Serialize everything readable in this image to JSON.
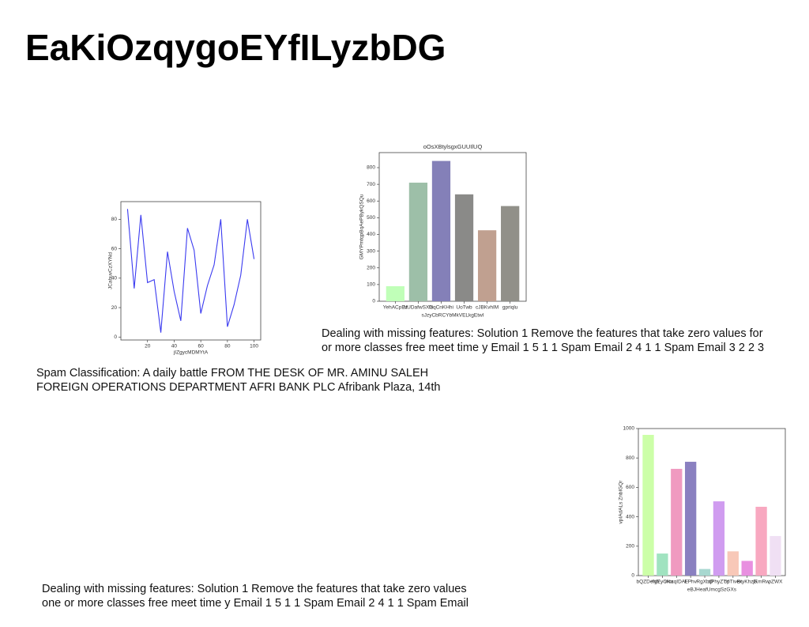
{
  "title": "EaKiOzqygoEYfILyzbDG",
  "captions": [
    [
      "Dealing with missing features: Solution 1 Remove the features that take zero values for",
      "or more classes free meet time y Email 1 5 1 1 Spam Email 2 4 1 1 Spam Email 3 2 2 3"
    ],
    [
      "Spam Classification: A daily battle FROM THE DESK OF MR. AMINU SALEH",
      "FOREIGN OPERATIONS DEPARTMENT AFRI BANK PLC Afribank Plaza, 14th"
    ],
    [
      "Dealing with missing features: Solution 1 Remove the features that take zero values",
      "one or more classes free meet time y Email 1 5 1 1 Spam Email 2 4 1 1 Spam Email"
    ]
  ],
  "chart_data": [
    {
      "type": "line",
      "xlabel": "jIZgycMDMYtA",
      "ylabel": "JCahuvCzXYNd",
      "color": "#3a3af0",
      "x": [
        5,
        10,
        15,
        20,
        25,
        30,
        35,
        40,
        45,
        50,
        55,
        60,
        65,
        70,
        75,
        80,
        85,
        90,
        95,
        100
      ],
      "values": [
        87,
        33,
        83,
        37,
        39,
        3,
        58,
        31,
        11,
        74,
        59,
        16,
        35,
        49,
        80,
        7,
        22,
        42,
        80,
        53
      ],
      "xlim": [
        0,
        105
      ],
      "ylim": [
        -2,
        92
      ],
      "xticks": [
        20,
        40,
        60,
        80,
        100
      ],
      "yticks": [
        0,
        20,
        40,
        60,
        80
      ]
    },
    {
      "type": "bar",
      "title": "oOsXBtylsgxGUUIlUQ",
      "xlabel": "sJzyCbRCYbMkVELkgEtwI",
      "ylabel": "GMYPmtqpBqAePBykQSQu",
      "categories": [
        "YehACpEz",
        "NUDafwSXG",
        "fzqCnKHhi",
        "UoTwb",
        "cJBKvhIM",
        "gpriqlu"
      ],
      "values": [
        90,
        710,
        840,
        640,
        425,
        570
      ],
      "colors": [
        "#c0ffb8",
        "#9dbfa8",
        "#8480b8",
        "#8a8a88",
        "#c0a090",
        "#919089"
      ],
      "ylim": [
        0,
        890
      ],
      "yticks": [
        0,
        100,
        200,
        300,
        400,
        500,
        600,
        700,
        800
      ]
    },
    {
      "type": "bar",
      "xlabel": "eBJHeafUmcgSzGXs",
      "ylabel": "vpIAdALs ZnbIGQr",
      "categories": [
        "bQZDeNY",
        "hgEyCNa",
        "wccqIDAF",
        "EPhv",
        "RgXbO",
        "qPhyZTY",
        "opTivex",
        "BtyKhzG",
        "jKmRw",
        "pZWX"
      ],
      "values": [
        957,
        150,
        726,
        774,
        45,
        505,
        165,
        100,
        468,
        269
      ],
      "colors": [
        "#ccffa8",
        "#a0e3c0",
        "#f09ac0",
        "#8a80c0",
        "#a8d8d0",
        "#d09cf0",
        "#f8c8b8",
        "#e890e0",
        "#f8a8c0",
        "#f0e0f4"
      ],
      "ylim": [
        0,
        1000
      ],
      "yticks": [
        0,
        200,
        400,
        600,
        800,
        1000
      ]
    }
  ]
}
